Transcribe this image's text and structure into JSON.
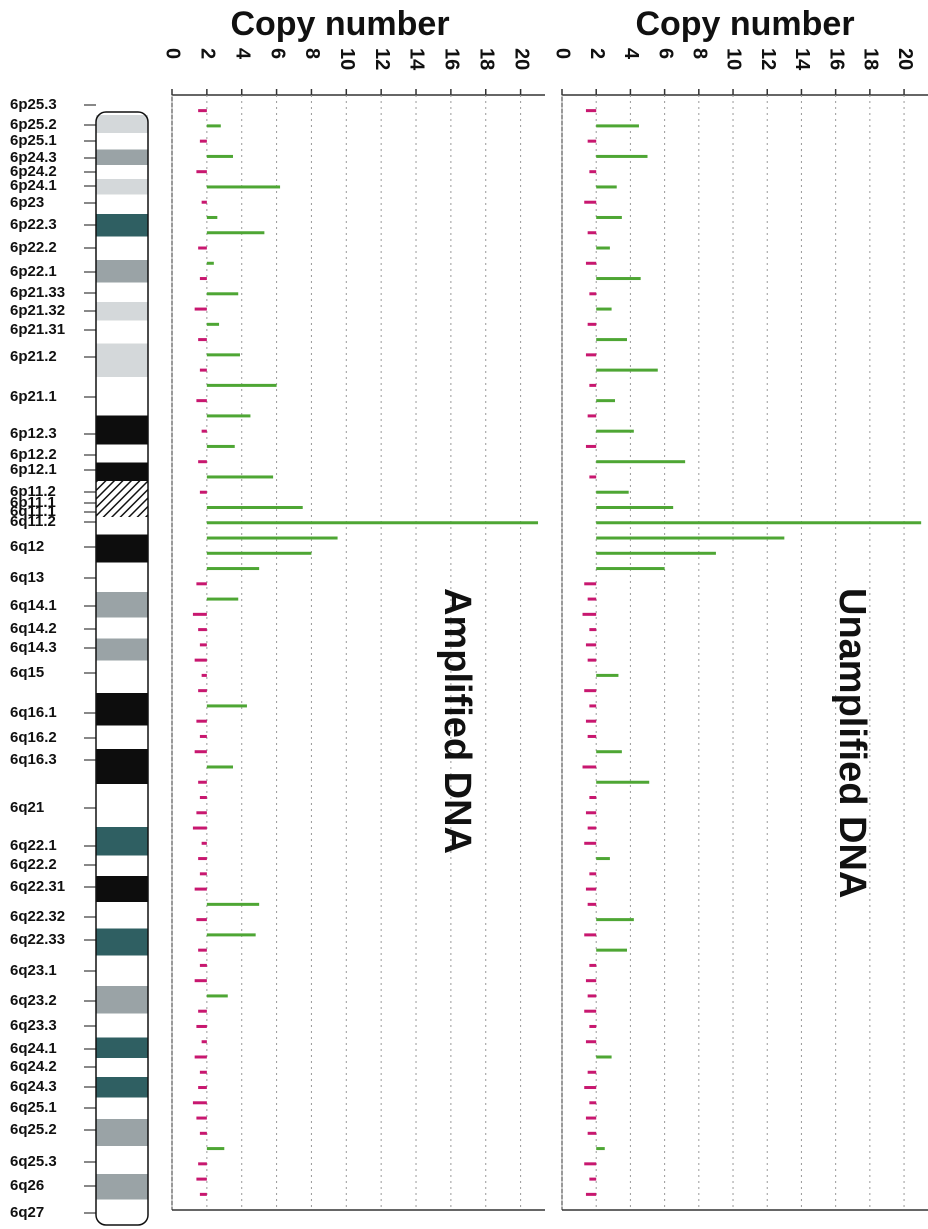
{
  "chart_data": [
    {
      "type": "bar",
      "orientation": "horizontal",
      "xlabel": "Copy number",
      "annotation": "Amplified DNA",
      "xlim": [
        0,
        21.4
      ],
      "xticks": [
        0,
        2,
        4,
        6,
        8,
        10,
        12,
        14,
        16,
        18,
        20
      ],
      "grid": true,
      "baseline": 2,
      "color_above": "#4ea634",
      "color_below": "#c8176f",
      "values": [
        1.5,
        2.8,
        1.6,
        3.5,
        1.4,
        6.2,
        1.7,
        2.6,
        5.3,
        1.5,
        2.4,
        1.6,
        3.8,
        1.3,
        2.7,
        1.5,
        3.9,
        1.6,
        6.0,
        1.4,
        4.5,
        1.7,
        3.6,
        1.5,
        5.8,
        1.6,
        7.5,
        21,
        9.5,
        8,
        5,
        1.4,
        3.8,
        1.2,
        1.5,
        1.6,
        1.3,
        1.7,
        1.5,
        4.3,
        1.4,
        1.6,
        1.3,
        3.5,
        1.5,
        1.6,
        1.4,
        1.2,
        1.7,
        1.5,
        1.6,
        1.3,
        5.0,
        1.4,
        4.8,
        1.5,
        1.6,
        1.3,
        3.2,
        1.5,
        1.4,
        1.7,
        1.3,
        1.6,
        1.5,
        1.2,
        1.4,
        1.6,
        3.0,
        1.5,
        1.4,
        1.6
      ]
    },
    {
      "type": "bar",
      "orientation": "horizontal",
      "xlabel": "Copy number",
      "annotation": "Unamplified DNA",
      "xlim": [
        0,
        21.4
      ],
      "xticks": [
        0,
        2,
        4,
        6,
        8,
        10,
        12,
        14,
        16,
        18,
        20
      ],
      "grid": true,
      "baseline": 2,
      "color_above": "#4ea634",
      "color_below": "#c8176f",
      "values": [
        1.4,
        4.5,
        1.5,
        5,
        1.6,
        3.2,
        1.3,
        3.5,
        1.5,
        2.8,
        1.4,
        4.6,
        1.6,
        2.9,
        1.5,
        3.8,
        1.4,
        5.6,
        1.6,
        3.1,
        1.5,
        4.2,
        1.4,
        7.2,
        1.6,
        3.9,
        6.5,
        21,
        13,
        9,
        6,
        1.3,
        1.5,
        1.2,
        1.6,
        1.4,
        1.5,
        3.3,
        1.3,
        1.6,
        1.4,
        1.5,
        3.5,
        1.2,
        5.1,
        1.6,
        1.4,
        1.5,
        1.3,
        2.8,
        1.6,
        1.4,
        1.5,
        4.2,
        1.3,
        3.8,
        1.6,
        1.4,
        1.5,
        1.3,
        1.6,
        1.4,
        2.9,
        1.5,
        1.3,
        1.6,
        1.4,
        1.5,
        2.5,
        1.3,
        1.6,
        1.4
      ]
    }
  ],
  "ideogram": {
    "bands": [
      {
        "label": "6p25.3",
        "color": "#ffffff"
      },
      {
        "label": "6p25.2",
        "color": "#d4d8da"
      },
      {
        "label": "6p25.1",
        "color": "#ffffff"
      },
      {
        "label": "6p24.3",
        "color": "#9aa3a6"
      },
      {
        "label": "6p24.2",
        "color": "#ffffff"
      },
      {
        "label": "6p24.1",
        "color": "#d4d8da"
      },
      {
        "label": "6p23",
        "color": "#ffffff"
      },
      {
        "label": "6p22.3",
        "color": "#2f5f62"
      },
      {
        "label": "6p22.2",
        "color": "#ffffff"
      },
      {
        "label": "6p22.1",
        "color": "#9aa3a6"
      },
      {
        "label": "6p21.33",
        "color": "#ffffff"
      },
      {
        "label": "6p21.32",
        "color": "#d4d8da"
      },
      {
        "label": "6p21.31",
        "color": "#ffffff"
      },
      {
        "label": "6p21.2",
        "color": "#d4d8da"
      },
      {
        "label": "6p21.1",
        "color": "#ffffff"
      },
      {
        "label": "6p12.3",
        "color": "#0d0d0d"
      },
      {
        "label": "6p12.2",
        "color": "#ffffff"
      },
      {
        "label": "6p12.1",
        "color": "#0d0d0d"
      },
      {
        "label": "6p11.2",
        "color": "#ffffff",
        "hatched": true
      },
      {
        "label": "6p11.1",
        "color": "#ffffff",
        "hatched": true
      },
      {
        "label": "6q11.1",
        "color": "#ffffff",
        "hatched": true
      },
      {
        "label": "6q11.2",
        "color": "#ffffff"
      },
      {
        "label": "6q12",
        "color": "#0d0d0d"
      },
      {
        "label": "6q13",
        "color": "#ffffff"
      },
      {
        "label": "6q14.1",
        "color": "#9aa3a6"
      },
      {
        "label": "6q14.2",
        "color": "#ffffff"
      },
      {
        "label": "6q14.3",
        "color": "#9aa3a6"
      },
      {
        "label": "6q15",
        "color": "#ffffff"
      },
      {
        "label": "6q16.1",
        "color": "#0d0d0d"
      },
      {
        "label": "6q16.2",
        "color": "#ffffff"
      },
      {
        "label": "6q16.3",
        "color": "#0d0d0d"
      },
      {
        "label": "6q21",
        "color": "#ffffff"
      },
      {
        "label": "6q22.1",
        "color": "#2f5f62"
      },
      {
        "label": "6q22.2",
        "color": "#ffffff"
      },
      {
        "label": "6q22.31",
        "color": "#0d0d0d"
      },
      {
        "label": "6q22.32",
        "color": "#ffffff"
      },
      {
        "label": "6q22.33",
        "color": "#2f5f62"
      },
      {
        "label": "6q23.1",
        "color": "#ffffff"
      },
      {
        "label": "6q23.2",
        "color": "#9aa3a6"
      },
      {
        "label": "6q23.3",
        "color": "#ffffff"
      },
      {
        "label": "6q24.1",
        "color": "#2f5f62"
      },
      {
        "label": "6q24.2",
        "color": "#ffffff"
      },
      {
        "label": "6q24.3",
        "color": "#2f5f62"
      },
      {
        "label": "6q25.1",
        "color": "#ffffff"
      },
      {
        "label": "6q25.2",
        "color": "#9aa3a6"
      },
      {
        "label": "6q25.3",
        "color": "#ffffff"
      },
      {
        "label": "6q26",
        "color": "#9aa3a6"
      },
      {
        "label": "6q27",
        "color": "#ffffff"
      }
    ]
  }
}
